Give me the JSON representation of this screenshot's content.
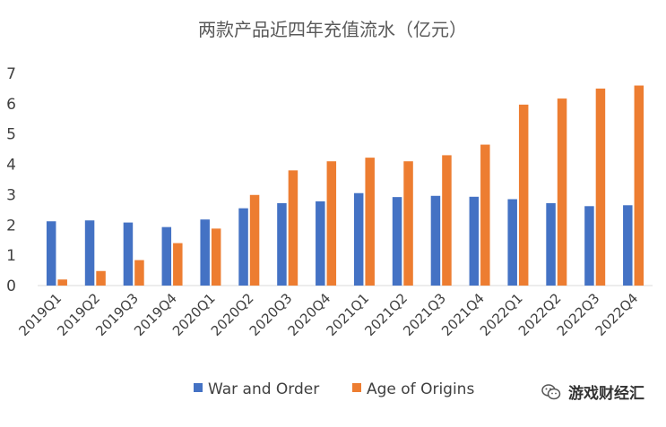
{
  "chart_data": {
    "type": "bar",
    "title": "两款产品近四年充值流水（亿元）",
    "categories": [
      "2019Q1",
      "2019Q2",
      "2019Q3",
      "2019Q4",
      "2020Q1",
      "2020Q2",
      "2020Q3",
      "2020Q4",
      "2021Q1",
      "2021Q2",
      "2021Q3",
      "2021Q4",
      "2022Q1",
      "2022Q2",
      "2022Q3",
      "2022Q4"
    ],
    "series": [
      {
        "name": "War and Order",
        "color": "#4472C4",
        "values": [
          2.12,
          2.15,
          2.08,
          1.93,
          2.18,
          2.55,
          2.72,
          2.78,
          3.05,
          2.92,
          2.96,
          2.93,
          2.85,
          2.72,
          2.62,
          2.65
        ]
      },
      {
        "name": "Age of Origins",
        "color": "#ED7D31",
        "values": [
          0.2,
          0.48,
          0.84,
          1.4,
          1.88,
          2.99,
          3.8,
          4.1,
          4.22,
          4.1,
          4.3,
          4.65,
          5.97,
          6.17,
          6.5,
          6.6
        ]
      }
    ],
    "yticks": [
      "0",
      "1",
      "2",
      "3",
      "4",
      "5",
      "6",
      "7"
    ],
    "ylim": [
      0,
      7
    ],
    "grid": false,
    "legend": "bottom"
  },
  "watermark": {
    "text": "游戏财经汇",
    "icon": "wechat-icon"
  }
}
